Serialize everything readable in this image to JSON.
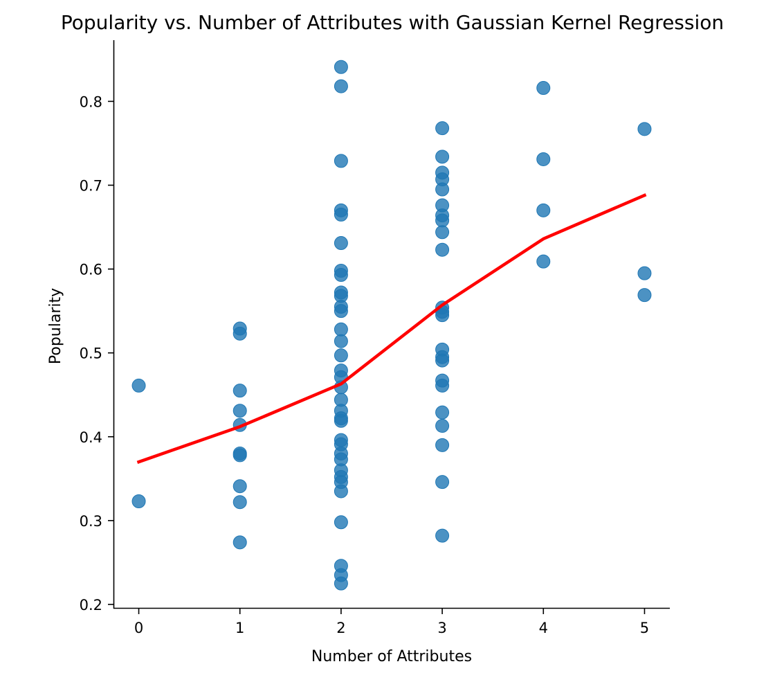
{
  "chart_data": {
    "type": "scatter",
    "title": "Popularity vs. Number of Attributes with Gaussian Kernel Regression",
    "xlabel": "Number of Attributes",
    "ylabel": "Popularity",
    "xlim": [
      -0.25,
      5.25
    ],
    "ylim": [
      0.195,
      0.873
    ],
    "x_ticks": [
      0,
      1,
      2,
      3,
      4,
      5
    ],
    "x_tick_labels": [
      "0",
      "1",
      "2",
      "3",
      "4",
      "5"
    ],
    "y_ticks": [
      0.2,
      0.3,
      0.4,
      0.5,
      0.6,
      0.7,
      0.8
    ],
    "y_tick_labels": [
      "0.2",
      "0.3",
      "0.4",
      "0.5",
      "0.6",
      "0.7",
      "0.8"
    ],
    "grid": false,
    "legend": "none",
    "colors": {
      "points": "#1f77b4",
      "regression": "#ff0000"
    },
    "points": [
      {
        "x": 0,
        "y": 0.461
      },
      {
        "x": 0,
        "y": 0.323
      },
      {
        "x": 1,
        "y": 0.529
      },
      {
        "x": 1,
        "y": 0.523
      },
      {
        "x": 1,
        "y": 0.455
      },
      {
        "x": 1,
        "y": 0.431
      },
      {
        "x": 1,
        "y": 0.414
      },
      {
        "x": 1,
        "y": 0.38
      },
      {
        "x": 1,
        "y": 0.378
      },
      {
        "x": 1,
        "y": 0.341
      },
      {
        "x": 1,
        "y": 0.322
      },
      {
        "x": 1,
        "y": 0.274
      },
      {
        "x": 2,
        "y": 0.841
      },
      {
        "x": 2,
        "y": 0.818
      },
      {
        "x": 2,
        "y": 0.729
      },
      {
        "x": 2,
        "y": 0.67
      },
      {
        "x": 2,
        "y": 0.665
      },
      {
        "x": 2,
        "y": 0.631
      },
      {
        "x": 2,
        "y": 0.598
      },
      {
        "x": 2,
        "y": 0.593
      },
      {
        "x": 2,
        "y": 0.572
      },
      {
        "x": 2,
        "y": 0.568
      },
      {
        "x": 2,
        "y": 0.555
      },
      {
        "x": 2,
        "y": 0.55
      },
      {
        "x": 2,
        "y": 0.528
      },
      {
        "x": 2,
        "y": 0.514
      },
      {
        "x": 2,
        "y": 0.497
      },
      {
        "x": 2,
        "y": 0.479
      },
      {
        "x": 2,
        "y": 0.471
      },
      {
        "x": 2,
        "y": 0.459
      },
      {
        "x": 2,
        "y": 0.444
      },
      {
        "x": 2,
        "y": 0.431
      },
      {
        "x": 2,
        "y": 0.422
      },
      {
        "x": 2,
        "y": 0.419
      },
      {
        "x": 2,
        "y": 0.396
      },
      {
        "x": 2,
        "y": 0.391
      },
      {
        "x": 2,
        "y": 0.38
      },
      {
        "x": 2,
        "y": 0.373
      },
      {
        "x": 2,
        "y": 0.36
      },
      {
        "x": 2,
        "y": 0.352
      },
      {
        "x": 2,
        "y": 0.346
      },
      {
        "x": 2,
        "y": 0.335
      },
      {
        "x": 2,
        "y": 0.298
      },
      {
        "x": 2,
        "y": 0.246
      },
      {
        "x": 2,
        "y": 0.235
      },
      {
        "x": 2,
        "y": 0.225
      },
      {
        "x": 3,
        "y": 0.768
      },
      {
        "x": 3,
        "y": 0.734
      },
      {
        "x": 3,
        "y": 0.715
      },
      {
        "x": 3,
        "y": 0.707
      },
      {
        "x": 3,
        "y": 0.695
      },
      {
        "x": 3,
        "y": 0.676
      },
      {
        "x": 3,
        "y": 0.664
      },
      {
        "x": 3,
        "y": 0.658
      },
      {
        "x": 3,
        "y": 0.644
      },
      {
        "x": 3,
        "y": 0.623
      },
      {
        "x": 3,
        "y": 0.554
      },
      {
        "x": 3,
        "y": 0.549
      },
      {
        "x": 3,
        "y": 0.545
      },
      {
        "x": 3,
        "y": 0.504
      },
      {
        "x": 3,
        "y": 0.495
      },
      {
        "x": 3,
        "y": 0.491
      },
      {
        "x": 3,
        "y": 0.467
      },
      {
        "x": 3,
        "y": 0.461
      },
      {
        "x": 3,
        "y": 0.429
      },
      {
        "x": 3,
        "y": 0.413
      },
      {
        "x": 3,
        "y": 0.39
      },
      {
        "x": 3,
        "y": 0.346
      },
      {
        "x": 3,
        "y": 0.282
      },
      {
        "x": 4,
        "y": 0.816
      },
      {
        "x": 4,
        "y": 0.731
      },
      {
        "x": 4,
        "y": 0.67
      },
      {
        "x": 4,
        "y": 0.609
      },
      {
        "x": 5,
        "y": 0.767
      },
      {
        "x": 5,
        "y": 0.595
      },
      {
        "x": 5,
        "y": 0.569
      }
    ],
    "regression_line": {
      "x": [
        0,
        1,
        2,
        3,
        4,
        5
      ],
      "y": [
        0.37,
        0.412,
        0.463,
        0.557,
        0.636,
        0.688
      ]
    }
  }
}
